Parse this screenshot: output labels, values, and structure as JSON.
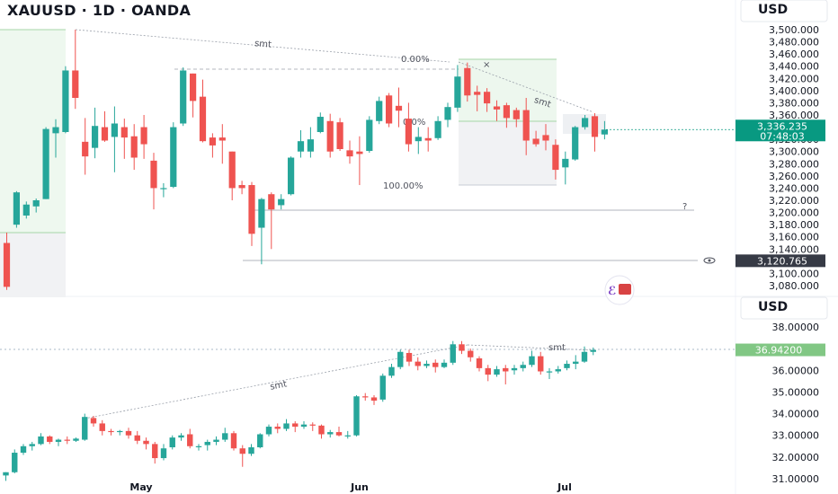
{
  "header": {
    "title": "XAUUSD · 1D · OANDA"
  },
  "top_panel": {
    "currency": "USD",
    "price_ticks": [
      "3,500.000",
      "3,480.000",
      "3,460.000",
      "3,440.000",
      "3,420.000",
      "3,400.000",
      "3,380.000",
      "3,360.000",
      "3,340.000",
      "3,320.000",
      "3,300.000",
      "3,280.000",
      "3,260.000",
      "3,240.000",
      "3,220.000",
      "3,200.000",
      "3,180.000",
      "3,160.000",
      "3,140.000",
      "3,120.000",
      "3,100.000",
      "3,080.000"
    ],
    "current_price_label": "3,336.235",
    "countdown_label": "07:48:03",
    "level_label": "3,120.765",
    "annotations": {
      "smt_1": "smt",
      "smt_2": "smt",
      "fib_0": "0.00%",
      "fib_50": "0.0%",
      "fib_100": "100.00%",
      "question": "?",
      "cross": "×"
    }
  },
  "bottom_panel": {
    "currency": "USD",
    "price_ticks": [
      "38.00000",
      "37.00000",
      "36.00000",
      "35.00000",
      "34.00000",
      "33.00000",
      "32.00000",
      "31.00000"
    ],
    "current_price_label": "36.94200",
    "annotations": {
      "smt_1": "smt",
      "smt_2": "smt"
    }
  },
  "time_axis": [
    "May",
    "Jun",
    "Jul"
  ],
  "colors": {
    "up": "#26a69a",
    "down": "#ef5350",
    "accent": "#089981",
    "axis_text": "#131722",
    "grid": "#e0e3eb"
  },
  "icons": [
    "eye-icon",
    "watermark-logo-icon"
  ],
  "chart_data": [
    {
      "type": "candlestick",
      "symbol": "XAUUSD",
      "timeframe": "1D",
      "ylim": [
        3070,
        3505
      ],
      "candles": [
        {
          "o": 3150,
          "h": 3167,
          "l": 3073,
          "c": 3078
        },
        {
          "o": 3180,
          "h": 3235,
          "l": 3175,
          "c": 3233
        },
        {
          "o": 3195,
          "h": 3218,
          "l": 3190,
          "c": 3213
        },
        {
          "o": 3210,
          "h": 3223,
          "l": 3200,
          "c": 3220
        },
        {
          "o": 3222,
          "h": 3340,
          "l": 3222,
          "c": 3337
        },
        {
          "o": 3330,
          "h": 3353,
          "l": 3290,
          "c": 3340
        },
        {
          "o": 3332,
          "h": 3440,
          "l": 3330,
          "c": 3433
        },
        {
          "o": 3433,
          "h": 3500,
          "l": 3370,
          "c": 3388
        },
        {
          "o": 3316,
          "h": 3355,
          "l": 3262,
          "c": 3292
        },
        {
          "o": 3306,
          "h": 3372,
          "l": 3289,
          "c": 3342
        },
        {
          "o": 3340,
          "h": 3366,
          "l": 3316,
          "c": 3318
        },
        {
          "o": 3324,
          "h": 3374,
          "l": 3266,
          "c": 3346
        },
        {
          "o": 3340,
          "h": 3354,
          "l": 3288,
          "c": 3323
        },
        {
          "o": 3325,
          "h": 3345,
          "l": 3270,
          "c": 3290
        },
        {
          "o": 3340,
          "h": 3360,
          "l": 3288,
          "c": 3312
        },
        {
          "o": 3285,
          "h": 3298,
          "l": 3205,
          "c": 3240
        },
        {
          "o": 3240,
          "h": 3248,
          "l": 3225,
          "c": 3240
        },
        {
          "o": 3242,
          "h": 3348,
          "l": 3240,
          "c": 3340
        },
        {
          "o": 3346,
          "h": 3438,
          "l": 3342,
          "c": 3433
        },
        {
          "o": 3428,
          "h": 3424,
          "l": 3356,
          "c": 3383
        },
        {
          "o": 3390,
          "h": 3418,
          "l": 3315,
          "c": 3317
        },
        {
          "o": 3323,
          "h": 3330,
          "l": 3290,
          "c": 3310
        },
        {
          "o": 3323,
          "h": 3345,
          "l": 3280,
          "c": 3318
        },
        {
          "o": 3300,
          "h": 3298,
          "l": 3220,
          "c": 3240
        },
        {
          "o": 3245,
          "h": 3252,
          "l": 3230,
          "c": 3240
        },
        {
          "o": 3245,
          "h": 3250,
          "l": 3145,
          "c": 3165
        },
        {
          "o": 3175,
          "h": 3224,
          "l": 3115,
          "c": 3222
        },
        {
          "o": 3230,
          "h": 3233,
          "l": 3140,
          "c": 3205
        },
        {
          "o": 3212,
          "h": 3230,
          "l": 3205,
          "c": 3222
        },
        {
          "o": 3230,
          "h": 3292,
          "l": 3228,
          "c": 3290
        },
        {
          "o": 3300,
          "h": 3335,
          "l": 3290,
          "c": 3317
        },
        {
          "o": 3300,
          "h": 3340,
          "l": 3290,
          "c": 3320
        },
        {
          "o": 3332,
          "h": 3364,
          "l": 3330,
          "c": 3357
        },
        {
          "o": 3350,
          "h": 3362,
          "l": 3290,
          "c": 3300
        },
        {
          "o": 3348,
          "h": 3355,
          "l": 3301,
          "c": 3304
        },
        {
          "o": 3302,
          "h": 3318,
          "l": 3280,
          "c": 3292
        },
        {
          "o": 3300,
          "h": 3325,
          "l": 3245,
          "c": 3296
        },
        {
          "o": 3301,
          "h": 3358,
          "l": 3298,
          "c": 3352
        },
        {
          "o": 3350,
          "h": 3390,
          "l": 3345,
          "c": 3383
        },
        {
          "o": 3392,
          "h": 3396,
          "l": 3340,
          "c": 3346
        },
        {
          "o": 3375,
          "h": 3405,
          "l": 3340,
          "c": 3367
        },
        {
          "o": 3354,
          "h": 3380,
          "l": 3300,
          "c": 3312
        },
        {
          "o": 3317,
          "h": 3340,
          "l": 3296,
          "c": 3324
        },
        {
          "o": 3322,
          "h": 3340,
          "l": 3300,
          "c": 3318
        },
        {
          "o": 3322,
          "h": 3358,
          "l": 3319,
          "c": 3350
        },
        {
          "o": 3352,
          "h": 3380,
          "l": 3340,
          "c": 3373
        },
        {
          "o": 3372,
          "h": 3442,
          "l": 3365,
          "c": 3423
        },
        {
          "o": 3437,
          "h": 3446,
          "l": 3382,
          "c": 3392
        },
        {
          "o": 3398,
          "h": 3408,
          "l": 3366,
          "c": 3393
        },
        {
          "o": 3398,
          "h": 3404,
          "l": 3365,
          "c": 3379
        },
        {
          "o": 3374,
          "h": 3384,
          "l": 3350,
          "c": 3369
        },
        {
          "o": 3376,
          "h": 3380,
          "l": 3339,
          "c": 3355
        },
        {
          "o": 3368,
          "h": 3372,
          "l": 3340,
          "c": 3353
        },
        {
          "o": 3368,
          "h": 3388,
          "l": 3294,
          "c": 3318
        },
        {
          "o": 3321,
          "h": 3334,
          "l": 3308,
          "c": 3312
        },
        {
          "o": 3327,
          "h": 3345,
          "l": 3302,
          "c": 3318
        },
        {
          "o": 3311,
          "h": 3320,
          "l": 3254,
          "c": 3270
        },
        {
          "o": 3274,
          "h": 3300,
          "l": 3246,
          "c": 3288
        },
        {
          "o": 3287,
          "h": 3342,
          "l": 3285,
          "c": 3340
        },
        {
          "o": 3340,
          "h": 3360,
          "l": 3336,
          "c": 3355
        },
        {
          "o": 3358,
          "h": 3363,
          "l": 3300,
          "c": 3324
        },
        {
          "o": 3328,
          "h": 3350,
          "l": 3320,
          "c": 3336
        }
      ]
    },
    {
      "type": "candlestick",
      "timeframe": "1D",
      "ylim": [
        30.7,
        38.5
      ],
      "candles": [
        {
          "o": 31.15,
          "h": 31.3,
          "l": 30.9,
          "c": 31.3
        },
        {
          "o": 31.3,
          "h": 32.35,
          "l": 31.25,
          "c": 32.2
        },
        {
          "o": 32.2,
          "h": 32.6,
          "l": 32.1,
          "c": 32.5
        },
        {
          "o": 32.5,
          "h": 32.7,
          "l": 32.3,
          "c": 32.6
        },
        {
          "o": 32.6,
          "h": 33.1,
          "l": 32.55,
          "c": 32.95
        },
        {
          "o": 32.95,
          "h": 33.0,
          "l": 32.6,
          "c": 32.7
        },
        {
          "o": 32.7,
          "h": 32.85,
          "l": 32.5,
          "c": 32.8
        },
        {
          "o": 32.8,
          "h": 32.95,
          "l": 32.6,
          "c": 32.75
        },
        {
          "o": 32.75,
          "h": 32.9,
          "l": 32.7,
          "c": 32.85
        },
        {
          "o": 32.8,
          "h": 34.0,
          "l": 32.75,
          "c": 33.85
        },
        {
          "o": 33.8,
          "h": 33.9,
          "l": 33.4,
          "c": 33.55
        },
        {
          "o": 33.55,
          "h": 33.7,
          "l": 33.0,
          "c": 33.2
        },
        {
          "o": 33.2,
          "h": 33.3,
          "l": 33.0,
          "c": 33.15
        },
        {
          "o": 33.15,
          "h": 33.25,
          "l": 33.0,
          "c": 33.2
        },
        {
          "o": 33.2,
          "h": 33.35,
          "l": 32.85,
          "c": 33.0
        },
        {
          "o": 33.0,
          "h": 33.2,
          "l": 32.6,
          "c": 32.75
        },
        {
          "o": 32.75,
          "h": 32.9,
          "l": 32.35,
          "c": 32.6
        },
        {
          "o": 32.6,
          "h": 32.7,
          "l": 31.7,
          "c": 31.95
        },
        {
          "o": 31.95,
          "h": 32.6,
          "l": 31.85,
          "c": 32.4
        },
        {
          "o": 32.45,
          "h": 33.0,
          "l": 32.35,
          "c": 32.9
        },
        {
          "o": 32.9,
          "h": 33.1,
          "l": 32.75,
          "c": 33.0
        },
        {
          "o": 33.05,
          "h": 33.3,
          "l": 32.4,
          "c": 32.5
        },
        {
          "o": 32.5,
          "h": 32.6,
          "l": 32.3,
          "c": 32.5
        },
        {
          "o": 32.55,
          "h": 32.8,
          "l": 32.3,
          "c": 32.7
        },
        {
          "o": 32.7,
          "h": 32.95,
          "l": 32.55,
          "c": 32.8
        },
        {
          "o": 32.8,
          "h": 33.35,
          "l": 32.7,
          "c": 33.1
        },
        {
          "o": 33.1,
          "h": 33.2,
          "l": 32.3,
          "c": 32.4
        },
        {
          "o": 32.4,
          "h": 32.55,
          "l": 31.55,
          "c": 32.15
        },
        {
          "o": 32.15,
          "h": 32.6,
          "l": 32.05,
          "c": 32.45
        },
        {
          "o": 32.45,
          "h": 33.1,
          "l": 32.4,
          "c": 33.05
        },
        {
          "o": 33.05,
          "h": 33.5,
          "l": 32.95,
          "c": 33.4
        },
        {
          "o": 33.4,
          "h": 33.55,
          "l": 33.1,
          "c": 33.3
        },
        {
          "o": 33.3,
          "h": 33.75,
          "l": 33.2,
          "c": 33.55
        },
        {
          "o": 33.55,
          "h": 33.65,
          "l": 33.15,
          "c": 33.4
        },
        {
          "o": 33.4,
          "h": 33.65,
          "l": 33.3,
          "c": 33.5
        },
        {
          "o": 33.5,
          "h": 33.6,
          "l": 33.2,
          "c": 33.45
        },
        {
          "o": 33.45,
          "h": 33.5,
          "l": 32.85,
          "c": 33.05
        },
        {
          "o": 33.05,
          "h": 33.25,
          "l": 32.9,
          "c": 33.15
        },
        {
          "o": 33.15,
          "h": 33.4,
          "l": 32.95,
          "c": 33.0
        },
        {
          "o": 33.0,
          "h": 33.2,
          "l": 32.85,
          "c": 33.0
        },
        {
          "o": 33.0,
          "h": 34.85,
          "l": 32.95,
          "c": 34.8
        },
        {
          "o": 34.8,
          "h": 34.95,
          "l": 34.6,
          "c": 34.75
        },
        {
          "o": 34.75,
          "h": 34.85,
          "l": 34.4,
          "c": 34.6
        },
        {
          "o": 34.65,
          "h": 35.85,
          "l": 34.55,
          "c": 35.75
        },
        {
          "o": 35.75,
          "h": 36.3,
          "l": 35.65,
          "c": 36.15
        },
        {
          "o": 36.15,
          "h": 36.95,
          "l": 36.05,
          "c": 36.85
        },
        {
          "o": 36.8,
          "h": 36.95,
          "l": 36.2,
          "c": 36.4
        },
        {
          "o": 36.4,
          "h": 36.6,
          "l": 36.0,
          "c": 36.2
        },
        {
          "o": 36.2,
          "h": 36.45,
          "l": 36.1,
          "c": 36.3
        },
        {
          "o": 36.35,
          "h": 36.5,
          "l": 35.9,
          "c": 36.15
        },
        {
          "o": 36.15,
          "h": 36.5,
          "l": 36.1,
          "c": 36.35
        },
        {
          "o": 36.35,
          "h": 37.35,
          "l": 36.25,
          "c": 37.2
        },
        {
          "o": 37.2,
          "h": 37.35,
          "l": 36.75,
          "c": 36.9
        },
        {
          "o": 36.9,
          "h": 37.0,
          "l": 36.4,
          "c": 36.6
        },
        {
          "o": 36.55,
          "h": 36.65,
          "l": 35.95,
          "c": 36.1
        },
        {
          "o": 36.1,
          "h": 36.25,
          "l": 35.5,
          "c": 35.8
        },
        {
          "o": 35.8,
          "h": 36.2,
          "l": 35.7,
          "c": 36.05
        },
        {
          "o": 36.1,
          "h": 36.25,
          "l": 35.35,
          "c": 35.95
        },
        {
          "o": 36.0,
          "h": 36.25,
          "l": 35.8,
          "c": 36.1
        },
        {
          "o": 36.1,
          "h": 36.4,
          "l": 35.95,
          "c": 36.25
        },
        {
          "o": 36.25,
          "h": 36.9,
          "l": 36.15,
          "c": 36.65
        },
        {
          "o": 36.65,
          "h": 36.85,
          "l": 35.8,
          "c": 35.95
        },
        {
          "o": 35.95,
          "h": 36.1,
          "l": 35.6,
          "c": 35.95
        },
        {
          "o": 35.95,
          "h": 36.2,
          "l": 35.85,
          "c": 36.05
        },
        {
          "o": 36.1,
          "h": 36.45,
          "l": 36.0,
          "c": 36.3
        },
        {
          "o": 36.3,
          "h": 36.7,
          "l": 36.05,
          "c": 36.4
        },
        {
          "o": 36.4,
          "h": 37.1,
          "l": 36.35,
          "c": 36.85
        },
        {
          "o": 36.85,
          "h": 37.05,
          "l": 36.7,
          "c": 36.94
        }
      ]
    }
  ]
}
